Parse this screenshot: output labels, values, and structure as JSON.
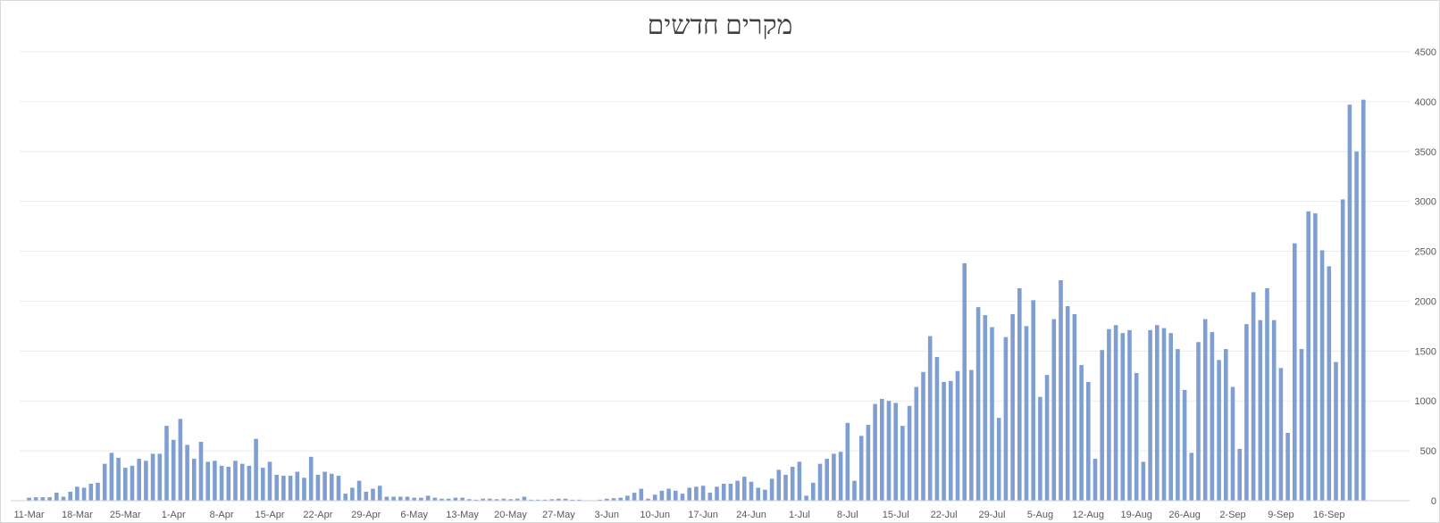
{
  "chart_data": {
    "type": "bar",
    "title": "מקרים חדשים",
    "xlabel": "",
    "ylabel": "",
    "ylim": [
      0,
      4500
    ],
    "yticks": [
      0,
      500,
      1000,
      1500,
      2000,
      2500,
      3000,
      3500,
      4000,
      4500
    ],
    "y_axis_side": "right",
    "grid": "horizontal",
    "legend": "none",
    "bar_color": "#7f9fd3",
    "x_start_date": "11-Mar",
    "x_ticks": [
      "11-Mar",
      "18-Mar",
      "25-Mar",
      "1-Apr",
      "8-Apr",
      "15-Apr",
      "22-Apr",
      "29-Apr",
      "6-May",
      "13-May",
      "20-May",
      "27-May",
      "3-Jun",
      "10-Jun",
      "17-Jun",
      "24-Jun",
      "1-Jul",
      "8-Jul",
      "15-Jul",
      "22-Jul",
      "29-Jul",
      "5-Aug",
      "12-Aug",
      "19-Aug",
      "26-Aug",
      "2-Sep",
      "9-Sep",
      "16-Sep"
    ],
    "series": [
      {
        "values": [
          30,
          35,
          35,
          35,
          80,
          40,
          90,
          140,
          130,
          170,
          180,
          370,
          480,
          430,
          330,
          350,
          420,
          400,
          470,
          470,
          750,
          610,
          820,
          560,
          420,
          590,
          390,
          400,
          350,
          340,
          400,
          370,
          350,
          620,
          330,
          390,
          260,
          250,
          250,
          290,
          230,
          440,
          260,
          290,
          270,
          250,
          70,
          130,
          200,
          90,
          120,
          150,
          40,
          40,
          40,
          40,
          30,
          30,
          50,
          30,
          20,
          20,
          30,
          30,
          15,
          10,
          20,
          20,
          15,
          20,
          15,
          20,
          40,
          10,
          10,
          10,
          15,
          20,
          20,
          10,
          10,
          5,
          5,
          10,
          20,
          25,
          30,
          50,
          80,
          120,
          20,
          60,
          100,
          120,
          100,
          70,
          130,
          140,
          150,
          80,
          140,
          170,
          170,
          200,
          240,
          190,
          130,
          110,
          220,
          310,
          260,
          340,
          390,
          50,
          180,
          370,
          420,
          470,
          490,
          780,
          200,
          650,
          760,
          970,
          1020,
          1000,
          980,
          750,
          950,
          1140,
          1290,
          1650,
          1440,
          1190,
          1200,
          1300,
          2380,
          1310,
          1940,
          1860,
          1740,
          830,
          1640,
          1870,
          2130,
          1750,
          2010,
          1040,
          1260,
          1820,
          2210,
          1950,
          1870,
          1360,
          1190,
          420,
          1510,
          1720,
          1760,
          1680,
          1710,
          1280,
          390,
          1710,
          1760,
          1730,
          1680,
          1520,
          1110,
          480,
          1590,
          1820,
          1690,
          1410,
          1520,
          1140,
          520,
          1770,
          2090,
          1810,
          2130,
          1810,
          1330,
          680,
          2580,
          1520,
          2900,
          2880,
          2510,
          2350,
          1390,
          3020,
          3970,
          3500,
          4020
        ]
      }
    ]
  }
}
